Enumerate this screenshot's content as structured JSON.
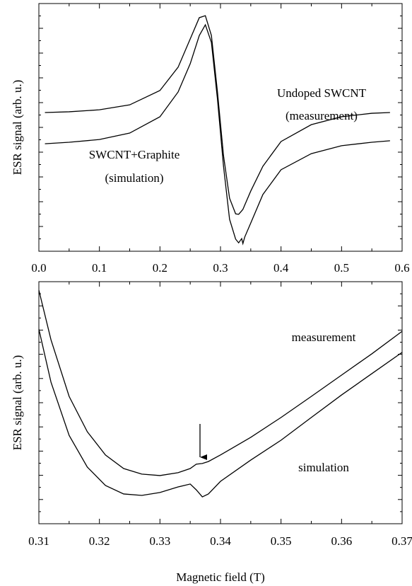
{
  "chart_data": [
    {
      "type": "line",
      "ylabel": "ESR signal (arb. u.)",
      "annotations": [
        "Undoped SWCNT",
        "(measurement)",
        "SWCNT+Graphite",
        "(simulation)"
      ],
      "x": [
        0.01,
        0.05,
        0.1,
        0.15,
        0.2,
        0.23,
        0.25,
        0.265,
        0.275,
        0.285,
        0.295,
        0.305,
        0.315,
        0.325,
        0.33,
        0.335,
        0.337,
        0.34,
        0.35,
        0.37,
        0.4,
        0.45,
        0.5,
        0.55,
        0.58
      ],
      "series": [
        {
          "color": "#000000",
          "values": [
            5.6,
            5.63,
            5.71,
            5.91,
            6.49,
            7.43,
            8.57,
            9.43,
            9.51,
            8.71,
            6.43,
            3.86,
            2.14,
            1.51,
            1.49,
            1.63,
            1.69,
            1.86,
            2.43,
            3.43,
            4.43,
            5.11,
            5.43,
            5.57,
            5.6
          ]
        },
        {
          "color": "#000000",
          "values": [
            4.34,
            4.4,
            4.51,
            4.77,
            5.43,
            6.43,
            7.57,
            8.71,
            9.14,
            8.43,
            6.14,
            3.43,
            1.29,
            0.49,
            0.34,
            0.51,
            0.31,
            0.57,
            1.14,
            2.29,
            3.29,
            3.94,
            4.26,
            4.4,
            4.46
          ]
        }
      ],
      "xlim": [
        0,
        0.6
      ],
      "xticks": [
        {
          "value": 0,
          "label": "0.0"
        },
        0.1,
        0.2,
        0.3,
        0.4,
        0.5,
        0.6
      ],
      "ylim": [
        0,
        10
      ]
    },
    {
      "type": "line",
      "ylabel": "ESR signal (arb. u.)",
      "xlabel": "Magnetic field (T)",
      "x": [
        0.31,
        0.312,
        0.315,
        0.318,
        0.321,
        0.324,
        0.327,
        0.33,
        0.333,
        0.335,
        0.336,
        0.337,
        0.338,
        0.34,
        0.345,
        0.35,
        0.355,
        0.36,
        0.365,
        0.37
      ],
      "series": [
        {
          "name": "measurement",
          "color": "#000000",
          "values": [
            9.65,
            7.6,
            5.26,
            3.8,
            2.84,
            2.28,
            2.05,
            1.99,
            2.11,
            2.28,
            2.46,
            2.49,
            2.57,
            2.84,
            3.57,
            4.39,
            5.26,
            6.14,
            7.02,
            7.95
          ]
        },
        {
          "name": "simulation",
          "color": "#000000",
          "values": [
            8.04,
            5.85,
            3.65,
            2.34,
            1.58,
            1.23,
            1.17,
            1.29,
            1.52,
            1.64,
            1.4,
            1.11,
            1.23,
            1.75,
            2.63,
            3.45,
            4.39,
            5.32,
            6.2,
            7.08
          ]
        }
      ],
      "xlim": [
        0.31,
        0.37
      ],
      "xticks": [
        0.31,
        0.32,
        0.33,
        0.34,
        0.35,
        0.36,
        0.37
      ],
      "ylim": [
        0,
        10
      ]
    }
  ]
}
